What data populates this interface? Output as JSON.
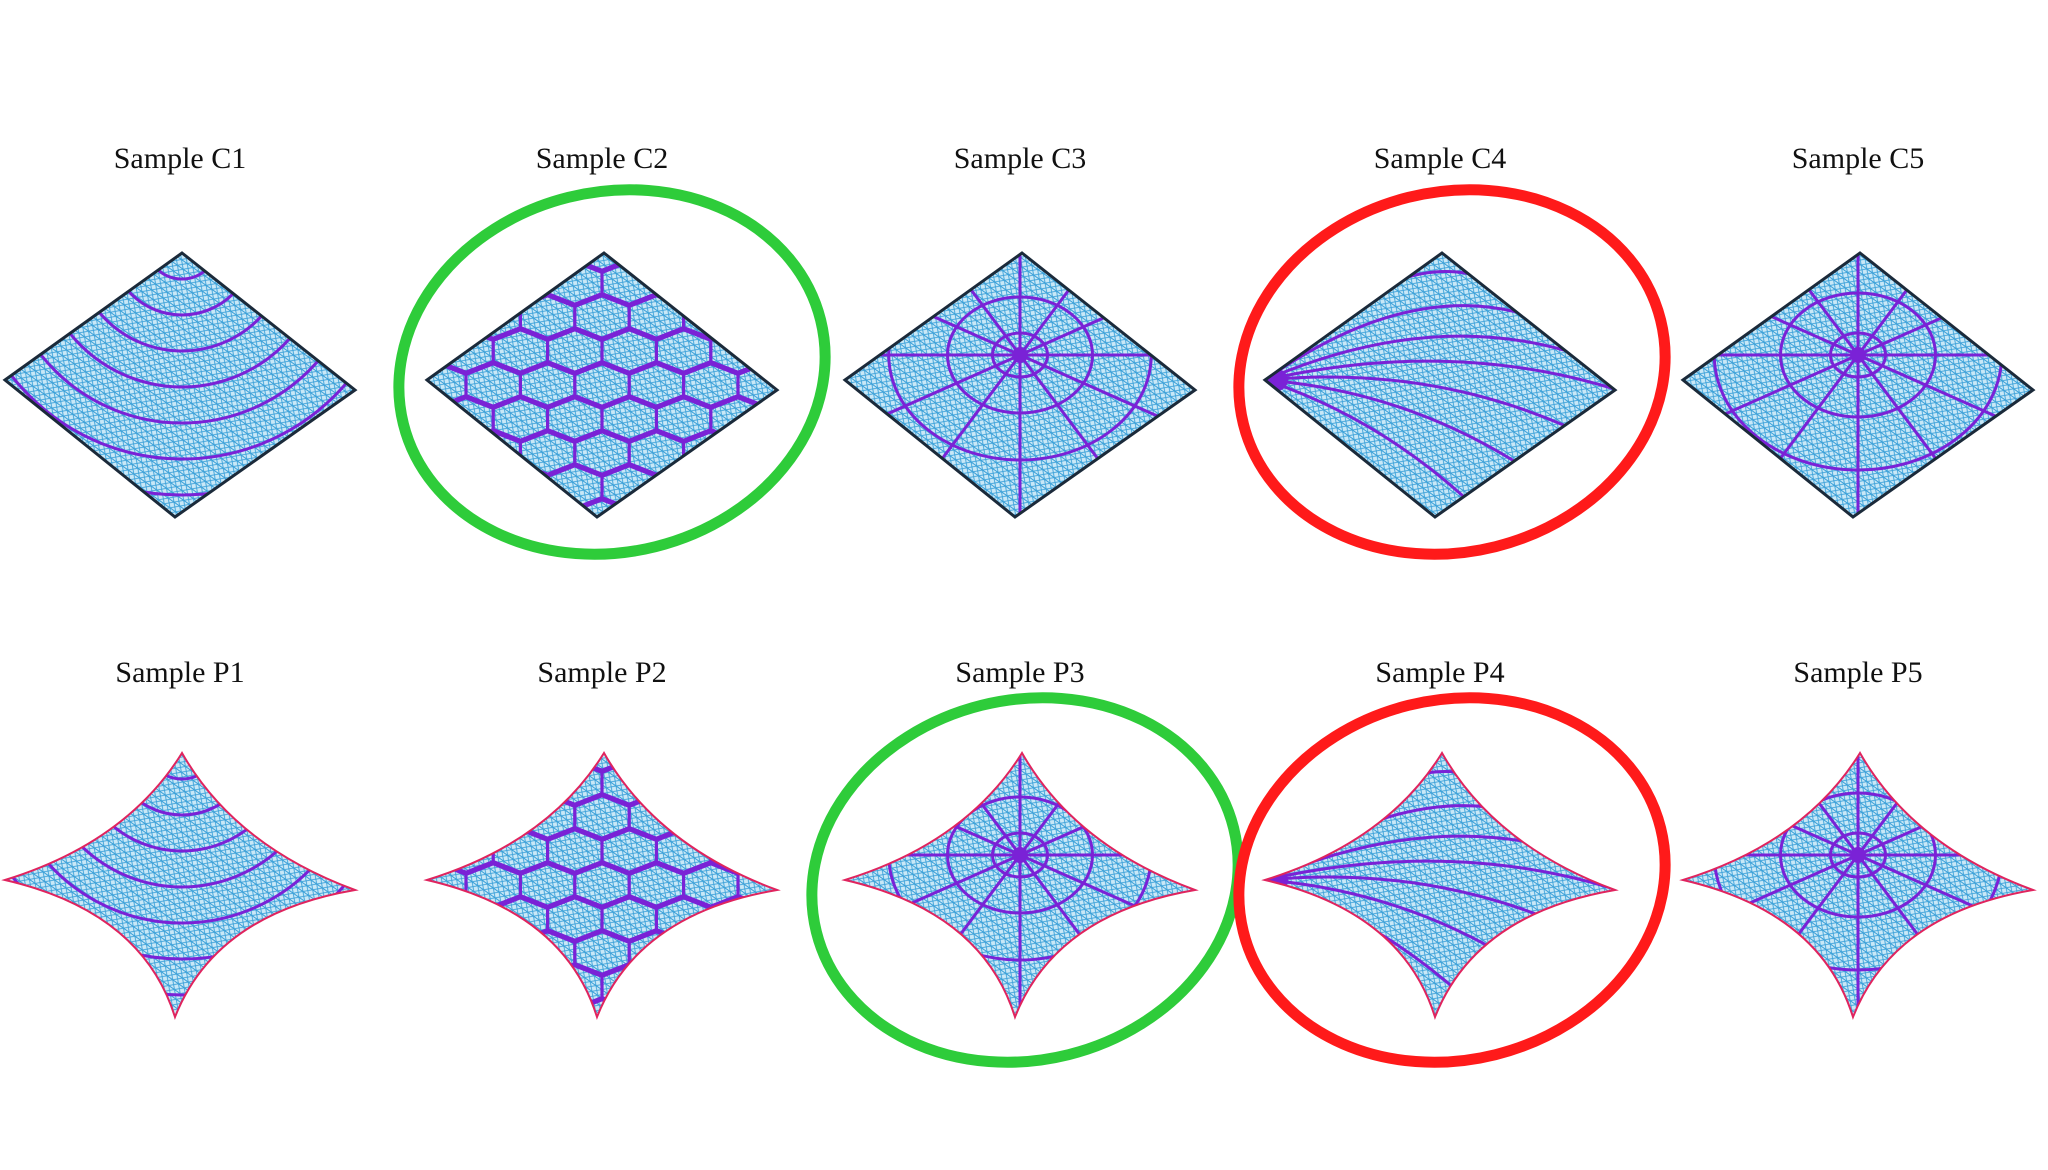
{
  "rows": [
    {
      "panels": [
        {
          "label": "Sample C1",
          "kind": "flat",
          "pattern": "arcs",
          "highlight": null
        },
        {
          "label": "Sample C2",
          "kind": "flat",
          "pattern": "cells",
          "highlight": "green"
        },
        {
          "label": "Sample C3",
          "kind": "flat",
          "pattern": "web",
          "highlight": null
        },
        {
          "label": "Sample C4",
          "kind": "flat",
          "pattern": "fan",
          "highlight": "red"
        },
        {
          "label": "Sample C5",
          "kind": "flat",
          "pattern": "web-cells",
          "highlight": null
        }
      ]
    },
    {
      "panels": [
        {
          "label": "Sample P1",
          "kind": "pinched",
          "pattern": "arcs",
          "highlight": null
        },
        {
          "label": "Sample P2",
          "kind": "pinched",
          "pattern": "cells",
          "highlight": null
        },
        {
          "label": "Sample P3",
          "kind": "pinched",
          "pattern": "web",
          "highlight": "green"
        },
        {
          "label": "Sample P4",
          "kind": "pinched",
          "pattern": "fan",
          "highlight": "red"
        },
        {
          "label": "Sample P5",
          "kind": "pinched",
          "pattern": "web-cells",
          "highlight": null
        }
      ]
    }
  ],
  "colors": {
    "mesh": "#3aa0d8",
    "fill": "#bfe3f5",
    "rib": "#7a22d6",
    "edge_flat": "#1b2a3a",
    "edge_pinched": "#e0245e",
    "highlight_green": "#2ecc3a",
    "highlight_red": "#ff1a1a"
  }
}
